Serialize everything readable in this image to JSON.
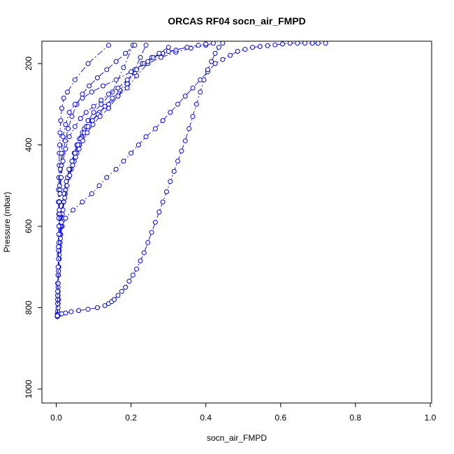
{
  "chart_data": {
    "type": "scatter",
    "title": "ORCAS RF04 socn_air_FMPD",
    "xlabel": "socn_air_FMPD",
    "ylabel": "Pressure (mbar)",
    "xlim": [
      0,
      1
    ],
    "ylim": [
      1030,
      150
    ],
    "y_reversed": true,
    "x_ticks": [
      0.0,
      0.2,
      0.4,
      0.6,
      0.8,
      1.0
    ],
    "x_tick_labels": [
      "0.0",
      "0.2",
      "0.4",
      "0.6",
      "0.8",
      "1.0"
    ],
    "y_ticks": [
      200,
      400,
      600,
      800,
      1000
    ],
    "y_tick_labels": [
      "200",
      "400",
      "600",
      "800",
      "1000"
    ],
    "color": "#0000ff",
    "marker": "open-circle",
    "line_style": "dash-dot",
    "grid": false,
    "series": [
      {
        "x": [
          0.003,
          0.003,
          0.004,
          0.005,
          0.005,
          0.006,
          0.005,
          0.004,
          0.004,
          0.005,
          0.006,
          0.007,
          0.008,
          0.01,
          0.012,
          0.016,
          0.025,
          0.045,
          0.07,
          0.095,
          0.115,
          0.135,
          0.16,
          0.18,
          0.2,
          0.22,
          0.24,
          0.265,
          0.285,
          0.305,
          0.325,
          0.345,
          0.365,
          0.385,
          0.405,
          0.425,
          0.445,
          0.465,
          0.485,
          0.505,
          0.525,
          0.545,
          0.565,
          0.585,
          0.605,
          0.625,
          0.645,
          0.665,
          0.685,
          0.7,
          0.72
        ],
        "y": [
          822,
          815,
          808,
          800,
          790,
          780,
          770,
          760,
          740,
          720,
          700,
          680,
          660,
          640,
          620,
          600,
          580,
          560,
          540,
          520,
          500,
          480,
          460,
          440,
          420,
          400,
          380,
          360,
          340,
          320,
          300,
          280,
          260,
          240,
          220,
          200,
          190,
          180,
          170,
          165,
          160,
          158,
          156,
          154,
          152,
          150,
          150,
          150,
          150,
          150,
          150
        ]
      },
      {
        "x": [
          0.003,
          0.003,
          0.004,
          0.005,
          0.006,
          0.008,
          0.01,
          0.015,
          0.025,
          0.04,
          0.06,
          0.085,
          0.11,
          0.13,
          0.14,
          0.148,
          0.155,
          0.165,
          0.175,
          0.185,
          0.195,
          0.205,
          0.215,
          0.225,
          0.235,
          0.245,
          0.255,
          0.265,
          0.275,
          0.285,
          0.295,
          0.305,
          0.315,
          0.325,
          0.335,
          0.345,
          0.355,
          0.365,
          0.375,
          0.385,
          0.395,
          0.405,
          0.415,
          0.425,
          0.435,
          0.445
        ],
        "y": [
          822,
          820,
          818,
          817,
          817,
          817,
          816,
          815,
          813,
          810,
          807,
          804,
          800,
          795,
          790,
          785,
          780,
          770,
          760,
          750,
          735,
          720,
          705,
          685,
          665,
          640,
          615,
          590,
          565,
          540,
          515,
          490,
          465,
          440,
          415,
          390,
          360,
          330,
          300,
          270,
          240,
          215,
          195,
          175,
          160,
          150
        ]
      },
      {
        "x": [
          0.003,
          0.004,
          0.005,
          0.006,
          0.007,
          0.008,
          0.008,
          0.007,
          0.006,
          0.006,
          0.007,
          0.008,
          0.008,
          0.009,
          0.01,
          0.012,
          0.015,
          0.02,
          0.03,
          0.05,
          0.085,
          0.14
        ],
        "y": [
          820,
          790,
          760,
          720,
          680,
          640,
          600,
          570,
          540,
          510,
          480,
          450,
          420,
          400,
          370,
          340,
          310,
          285,
          270,
          240,
          200,
          155
        ]
      },
      {
        "x": [
          0.003,
          0.004,
          0.005,
          0.006,
          0.008,
          0.01,
          0.012,
          0.014,
          0.016,
          0.02,
          0.024,
          0.028,
          0.033,
          0.04,
          0.048,
          0.055,
          0.062,
          0.068,
          0.075,
          0.085,
          0.1,
          0.12,
          0.15,
          0.18,
          0.205
        ],
        "y": [
          820,
          780,
          740,
          700,
          660,
          620,
          600,
          580,
          560,
          540,
          520,
          500,
          480,
          460,
          440,
          420,
          400,
          380,
          360,
          340,
          320,
          300,
          270,
          210,
          155
        ]
      },
      {
        "x": [
          0.003,
          0.004,
          0.006,
          0.008,
          0.01,
          0.013,
          0.016,
          0.02,
          0.025,
          0.03,
          0.036,
          0.042,
          0.048,
          0.055,
          0.062,
          0.07,
          0.08,
          0.095,
          0.115,
          0.14,
          0.165,
          0.19,
          0.215,
          0.245,
          0.28,
          0.32,
          0.36,
          0.4,
          0.42
        ],
        "y": [
          820,
          770,
          720,
          680,
          640,
          600,
          570,
          540,
          510,
          480,
          460,
          440,
          420,
          400,
          385,
          370,
          355,
          340,
          320,
          300,
          280,
          260,
          230,
          200,
          185,
          172,
          162,
          155,
          150
        ]
      },
      {
        "x": [
          0.003,
          0.005,
          0.007,
          0.009,
          0.012,
          0.016,
          0.021,
          0.027,
          0.034,
          0.042,
          0.05,
          0.058,
          0.066,
          0.075,
          0.085,
          0.097,
          0.112,
          0.13,
          0.15,
          0.17,
          0.19,
          0.21,
          0.23,
          0.255,
          0.285,
          0.32,
          0.35,
          0.38,
          0.4
        ],
        "y": [
          820,
          760,
          700,
          650,
          600,
          560,
          520,
          490,
          460,
          440,
          420,
          400,
          385,
          370,
          355,
          340,
          325,
          305,
          285,
          265,
          245,
          222,
          200,
          185,
          175,
          167,
          160,
          155,
          152
        ]
      },
      {
        "x": [
          0.003,
          0.004,
          0.005,
          0.006,
          0.008,
          0.011,
          0.014,
          0.018,
          0.023,
          0.029,
          0.036,
          0.044,
          0.052,
          0.061,
          0.071,
          0.083,
          0.098,
          0.117,
          0.14,
          0.165,
          0.19,
          0.21,
          0.225,
          0.24
        ],
        "y": [
          820,
          790,
          750,
          710,
          670,
          630,
          590,
          560,
          530,
          500,
          475,
          450,
          430,
          410,
          390,
          370,
          350,
          330,
          310,
          280,
          250,
          215,
          185,
          155
        ]
      },
      {
        "x": [
          0.003,
          0.004,
          0.005,
          0.006,
          0.007,
          0.008,
          0.008,
          0.009,
          0.01,
          0.012,
          0.014,
          0.018,
          0.024,
          0.032,
          0.042,
          0.055,
          0.07,
          0.088,
          0.11,
          0.135,
          0.16,
          0.185,
          0.21
        ],
        "y": [
          820,
          770,
          720,
          680,
          640,
          600,
          570,
          540,
          510,
          480,
          450,
          420,
          390,
          360,
          330,
          300,
          275,
          255,
          235,
          215,
          195,
          175,
          155
        ]
      },
      {
        "x": [
          0.003,
          0.004,
          0.005,
          0.006,
          0.006,
          0.007,
          0.007,
          0.008,
          0.009,
          0.011,
          0.014,
          0.018,
          0.025,
          0.035,
          0.05,
          0.07,
          0.095,
          0.125,
          0.16,
          0.2,
          0.235,
          0.26,
          0.3,
          0.35
        ],
        "y": [
          820,
          780,
          740,
          700,
          660,
          620,
          580,
          540,
          500,
          460,
          420,
          380,
          350,
          320,
          300,
          285,
          270,
          255,
          240,
          220,
          200,
          185,
          170,
          160
        ]
      },
      {
        "x": [
          0.003,
          0.004,
          0.005,
          0.006,
          0.007,
          0.008,
          0.01,
          0.013,
          0.018,
          0.025,
          0.035,
          0.05,
          0.065,
          0.08,
          0.1,
          0.12,
          0.14,
          0.165,
          0.19,
          0.215,
          0.245,
          0.275,
          0.3
        ],
        "y": [
          820,
          760,
          700,
          650,
          600,
          560,
          520,
          480,
          440,
          410,
          380,
          355,
          335,
          320,
          305,
          290,
          275,
          260,
          240,
          215,
          195,
          175,
          160
        ]
      }
    ]
  }
}
